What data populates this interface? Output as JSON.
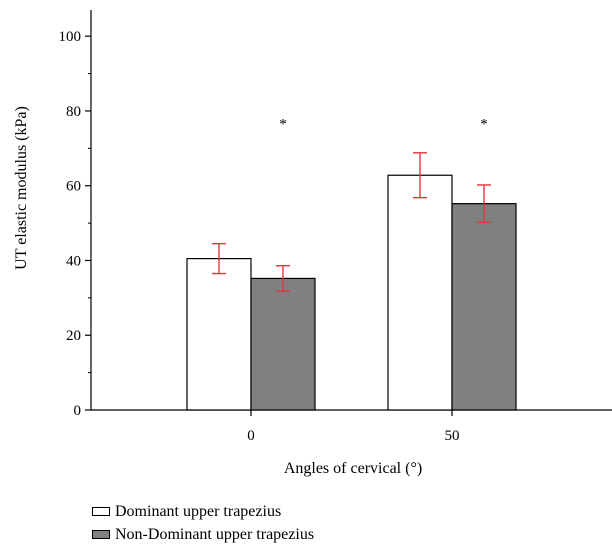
{
  "chart_data": {
    "type": "bar",
    "xlabel": "Angles of cervical (°)",
    "ylabel": "UT elastic modulus (kPa)",
    "ylim": [
      0,
      107
    ],
    "yticks": [
      0,
      20,
      40,
      60,
      80,
      100
    ],
    "categories": [
      "0",
      "50"
    ],
    "series": [
      {
        "name": "Dominant upper trapezius",
        "values": [
          40.5,
          62.8
        ],
        "error": [
          4.0,
          6.0
        ],
        "color": "#ffffff"
      },
      {
        "name": "Non-Dominant upper trapezius",
        "values": [
          35.2,
          55.2
        ],
        "error": [
          3.4,
          5.0
        ],
        "color": "#808080"
      }
    ],
    "annotations": [
      "*",
      "*"
    ],
    "annotation_y": [
      78,
      78
    ],
    "error_bar_color": "#e8333a",
    "grid": false,
    "legend_position": "bottom-left"
  }
}
